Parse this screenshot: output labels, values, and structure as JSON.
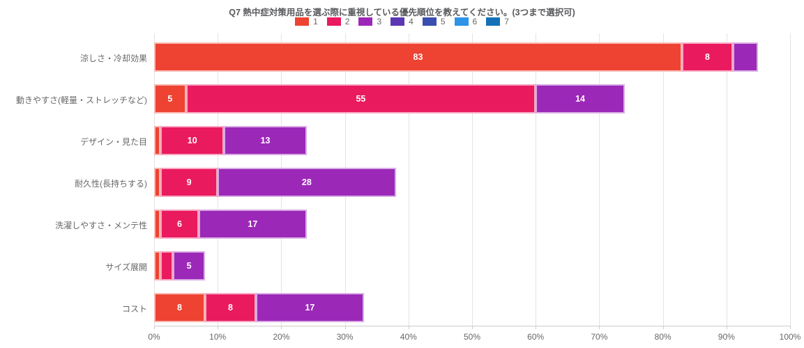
{
  "chart_data": {
    "type": "bar",
    "orientation": "horizontal",
    "stacked": true,
    "title": "Q7 熱中症対策用品を選ぶ際に重視している優先順位を教えてください。(3つまで選択可)",
    "categories": [
      "涼しさ・冷却効果",
      "動きやすさ(軽量・ストレッチなど)",
      "デザイン・見た目",
      "耐久性(長持ちする)",
      "洗濯しやすさ・メンテ性",
      "サイズ展開",
      "コスト"
    ],
    "series": [
      {
        "name": "1",
        "color": "#ee4332",
        "values": [
          83,
          5,
          1,
          1,
          1,
          1,
          8
        ]
      },
      {
        "name": "2",
        "color": "#ea1a5f",
        "values": [
          8,
          55,
          10,
          9,
          6,
          2,
          8
        ]
      },
      {
        "name": "3",
        "color": "#9c28b8",
        "values": [
          4,
          14,
          13,
          28,
          17,
          5,
          17
        ]
      },
      {
        "name": "4",
        "color": "#5c37b4",
        "values": [
          0,
          0,
          0,
          0,
          0,
          0,
          0
        ]
      },
      {
        "name": "5",
        "color": "#3a4db0",
        "values": [
          0,
          0,
          0,
          0,
          0,
          0,
          0
        ]
      },
      {
        "name": "6",
        "color": "#2d94e8",
        "values": [
          0,
          0,
          0,
          0,
          0,
          0,
          0
        ]
      },
      {
        "name": "7",
        "color": "#1471b8",
        "values": [
          0,
          0,
          0,
          0,
          0,
          0,
          0
        ]
      }
    ],
    "x_axis": {
      "min": 0,
      "max": 100,
      "tick_labels": [
        "0%",
        "10%",
        "20%",
        "30%",
        "40%",
        "50%",
        "60%",
        "70%",
        "80%",
        "90%",
        "100%"
      ],
      "grid": true
    },
    "legend_position": "top",
    "value_label_min": 5
  },
  "styles": {
    "background": "#ffffff",
    "title_color": "#58595b",
    "text_color": "#666666",
    "grid_color": "#e3e3e3",
    "axis_color": "#cccccc",
    "value_label_color": "#ffffff"
  }
}
